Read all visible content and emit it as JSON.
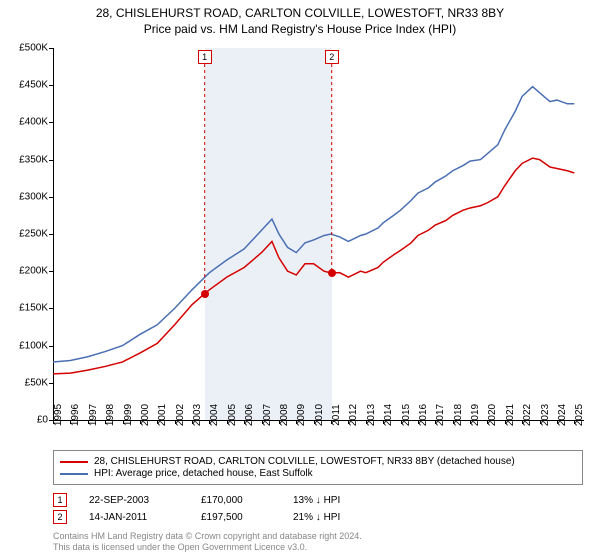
{
  "title_line1": "28, CHISLEHURST ROAD, CARLTON COLVILLE, LOWESTOFT, NR33 8BY",
  "title_line2": "Price paid vs. HM Land Registry's House Price Index (HPI)",
  "chart": {
    "type": "line",
    "background_color": "#ffffff",
    "shaded_band_color": "#dbe4ef",
    "shaded_band_opacity": 0.55,
    "ylim": [
      0,
      500000
    ],
    "ytick_step": 50000,
    "ytick_labels": [
      "£0",
      "£50K",
      "£100K",
      "£150K",
      "£200K",
      "£250K",
      "£300K",
      "£350K",
      "£400K",
      "£450K",
      "£500K"
    ],
    "xlim": [
      1995,
      2025.5
    ],
    "xticks": [
      1995,
      1996,
      1997,
      1998,
      1999,
      2000,
      2001,
      2002,
      2003,
      2004,
      2005,
      2006,
      2007,
      2008,
      2009,
      2010,
      2011,
      2012,
      2013,
      2014,
      2015,
      2016,
      2017,
      2018,
      2019,
      2020,
      2021,
      2022,
      2023,
      2024,
      2025
    ],
    "label_fontsize": 10,
    "title_fontsize": 12,
    "line_width": 1.5,
    "series": [
      {
        "name": "price_paid",
        "color": "#d40000",
        "label": "28, CHISLEHURST ROAD, CARLTON COLVILLE, LOWESTOFT, NR33 8BY (detached house)",
        "xy": [
          [
            1995,
            62000
          ],
          [
            1996,
            63000
          ],
          [
            1997,
            67000
          ],
          [
            1998,
            72000
          ],
          [
            1999,
            78000
          ],
          [
            2000,
            90000
          ],
          [
            2001,
            103000
          ],
          [
            2002,
            128000
          ],
          [
            2003,
            155000
          ],
          [
            2003.73,
            170000
          ],
          [
            2004,
            175000
          ],
          [
            2005,
            192000
          ],
          [
            2006,
            205000
          ],
          [
            2006.5,
            215000
          ],
          [
            2007,
            225000
          ],
          [
            2007.6,
            240000
          ],
          [
            2008,
            218000
          ],
          [
            2008.5,
            200000
          ],
          [
            2009,
            195000
          ],
          [
            2009.5,
            210000
          ],
          [
            2010,
            210000
          ],
          [
            2010.6,
            200000
          ],
          [
            2011.04,
            197500
          ],
          [
            2011.5,
            198000
          ],
          [
            2012,
            192000
          ],
          [
            2012.7,
            200000
          ],
          [
            2013,
            198000
          ],
          [
            2013.7,
            205000
          ],
          [
            2014,
            212000
          ],
          [
            2014.6,
            222000
          ],
          [
            2015,
            228000
          ],
          [
            2015.6,
            238000
          ],
          [
            2016,
            248000
          ],
          [
            2016.6,
            255000
          ],
          [
            2017,
            262000
          ],
          [
            2017.6,
            268000
          ],
          [
            2018,
            275000
          ],
          [
            2018.6,
            282000
          ],
          [
            2019,
            285000
          ],
          [
            2019.6,
            288000
          ],
          [
            2020,
            292000
          ],
          [
            2020.6,
            300000
          ],
          [
            2021,
            315000
          ],
          [
            2021.6,
            335000
          ],
          [
            2022,
            345000
          ],
          [
            2022.6,
            352000
          ],
          [
            2023,
            350000
          ],
          [
            2023.6,
            340000
          ],
          [
            2024,
            338000
          ],
          [
            2024.6,
            335000
          ],
          [
            2025,
            332000
          ]
        ]
      },
      {
        "name": "hpi",
        "color": "#4a6fb3",
        "label": "HPI: Average price, detached house, East Suffolk",
        "xy": [
          [
            1995,
            78000
          ],
          [
            1996,
            80000
          ],
          [
            1997,
            85000
          ],
          [
            1998,
            92000
          ],
          [
            1999,
            100000
          ],
          [
            2000,
            115000
          ],
          [
            2001,
            128000
          ],
          [
            2002,
            150000
          ],
          [
            2003,
            175000
          ],
          [
            2004,
            198000
          ],
          [
            2005,
            215000
          ],
          [
            2006,
            230000
          ],
          [
            2006.6,
            245000
          ],
          [
            2007,
            255000
          ],
          [
            2007.6,
            270000
          ],
          [
            2008,
            250000
          ],
          [
            2008.5,
            232000
          ],
          [
            2009,
            225000
          ],
          [
            2009.5,
            238000
          ],
          [
            2010,
            242000
          ],
          [
            2010.6,
            248000
          ],
          [
            2011,
            250000
          ],
          [
            2011.5,
            246000
          ],
          [
            2012,
            240000
          ],
          [
            2012.7,
            248000
          ],
          [
            2013,
            250000
          ],
          [
            2013.7,
            258000
          ],
          [
            2014,
            265000
          ],
          [
            2014.6,
            275000
          ],
          [
            2015,
            282000
          ],
          [
            2015.6,
            295000
          ],
          [
            2016,
            305000
          ],
          [
            2016.6,
            312000
          ],
          [
            2017,
            320000
          ],
          [
            2017.6,
            328000
          ],
          [
            2018,
            335000
          ],
          [
            2018.6,
            342000
          ],
          [
            2019,
            348000
          ],
          [
            2019.6,
            350000
          ],
          [
            2020,
            358000
          ],
          [
            2020.6,
            370000
          ],
          [
            2021,
            390000
          ],
          [
            2021.6,
            415000
          ],
          [
            2022,
            435000
          ],
          [
            2022.6,
            448000
          ],
          [
            2023,
            440000
          ],
          [
            2023.6,
            428000
          ],
          [
            2024,
            430000
          ],
          [
            2024.6,
            425000
          ],
          [
            2025,
            425000
          ]
        ]
      }
    ],
    "sale_shade": {
      "start": 2003.73,
      "end": 2011.04
    },
    "sale_markers": [
      {
        "n": "1",
        "x": 2003.73,
        "y": 170000,
        "box_color": "#d40000",
        "dot_color": "#d40000"
      },
      {
        "n": "2",
        "x": 2011.04,
        "y": 197500,
        "box_color": "#d40000",
        "dot_color": "#d40000"
      }
    ]
  },
  "legend": {
    "items": [
      {
        "color": "#d40000",
        "text": "28, CHISLEHURST ROAD, CARLTON COLVILLE, LOWESTOFT, NR33 8BY (detached house)"
      },
      {
        "color": "#4a6fb3",
        "text": "HPI: Average price, detached house, East Suffolk"
      }
    ]
  },
  "sales_table": {
    "rows": [
      {
        "n": "1",
        "box_color": "#d40000",
        "date": "22-SEP-2003",
        "price": "£170,000",
        "delta": "13% ↓ HPI"
      },
      {
        "n": "2",
        "box_color": "#d40000",
        "date": "14-JAN-2011",
        "price": "£197,500",
        "delta": "21% ↓ HPI"
      }
    ]
  },
  "footnote_line1": "Contains HM Land Registry data © Crown copyright and database right 2024.",
  "footnote_line2": "This data is licensed under the Open Government Licence v3.0."
}
